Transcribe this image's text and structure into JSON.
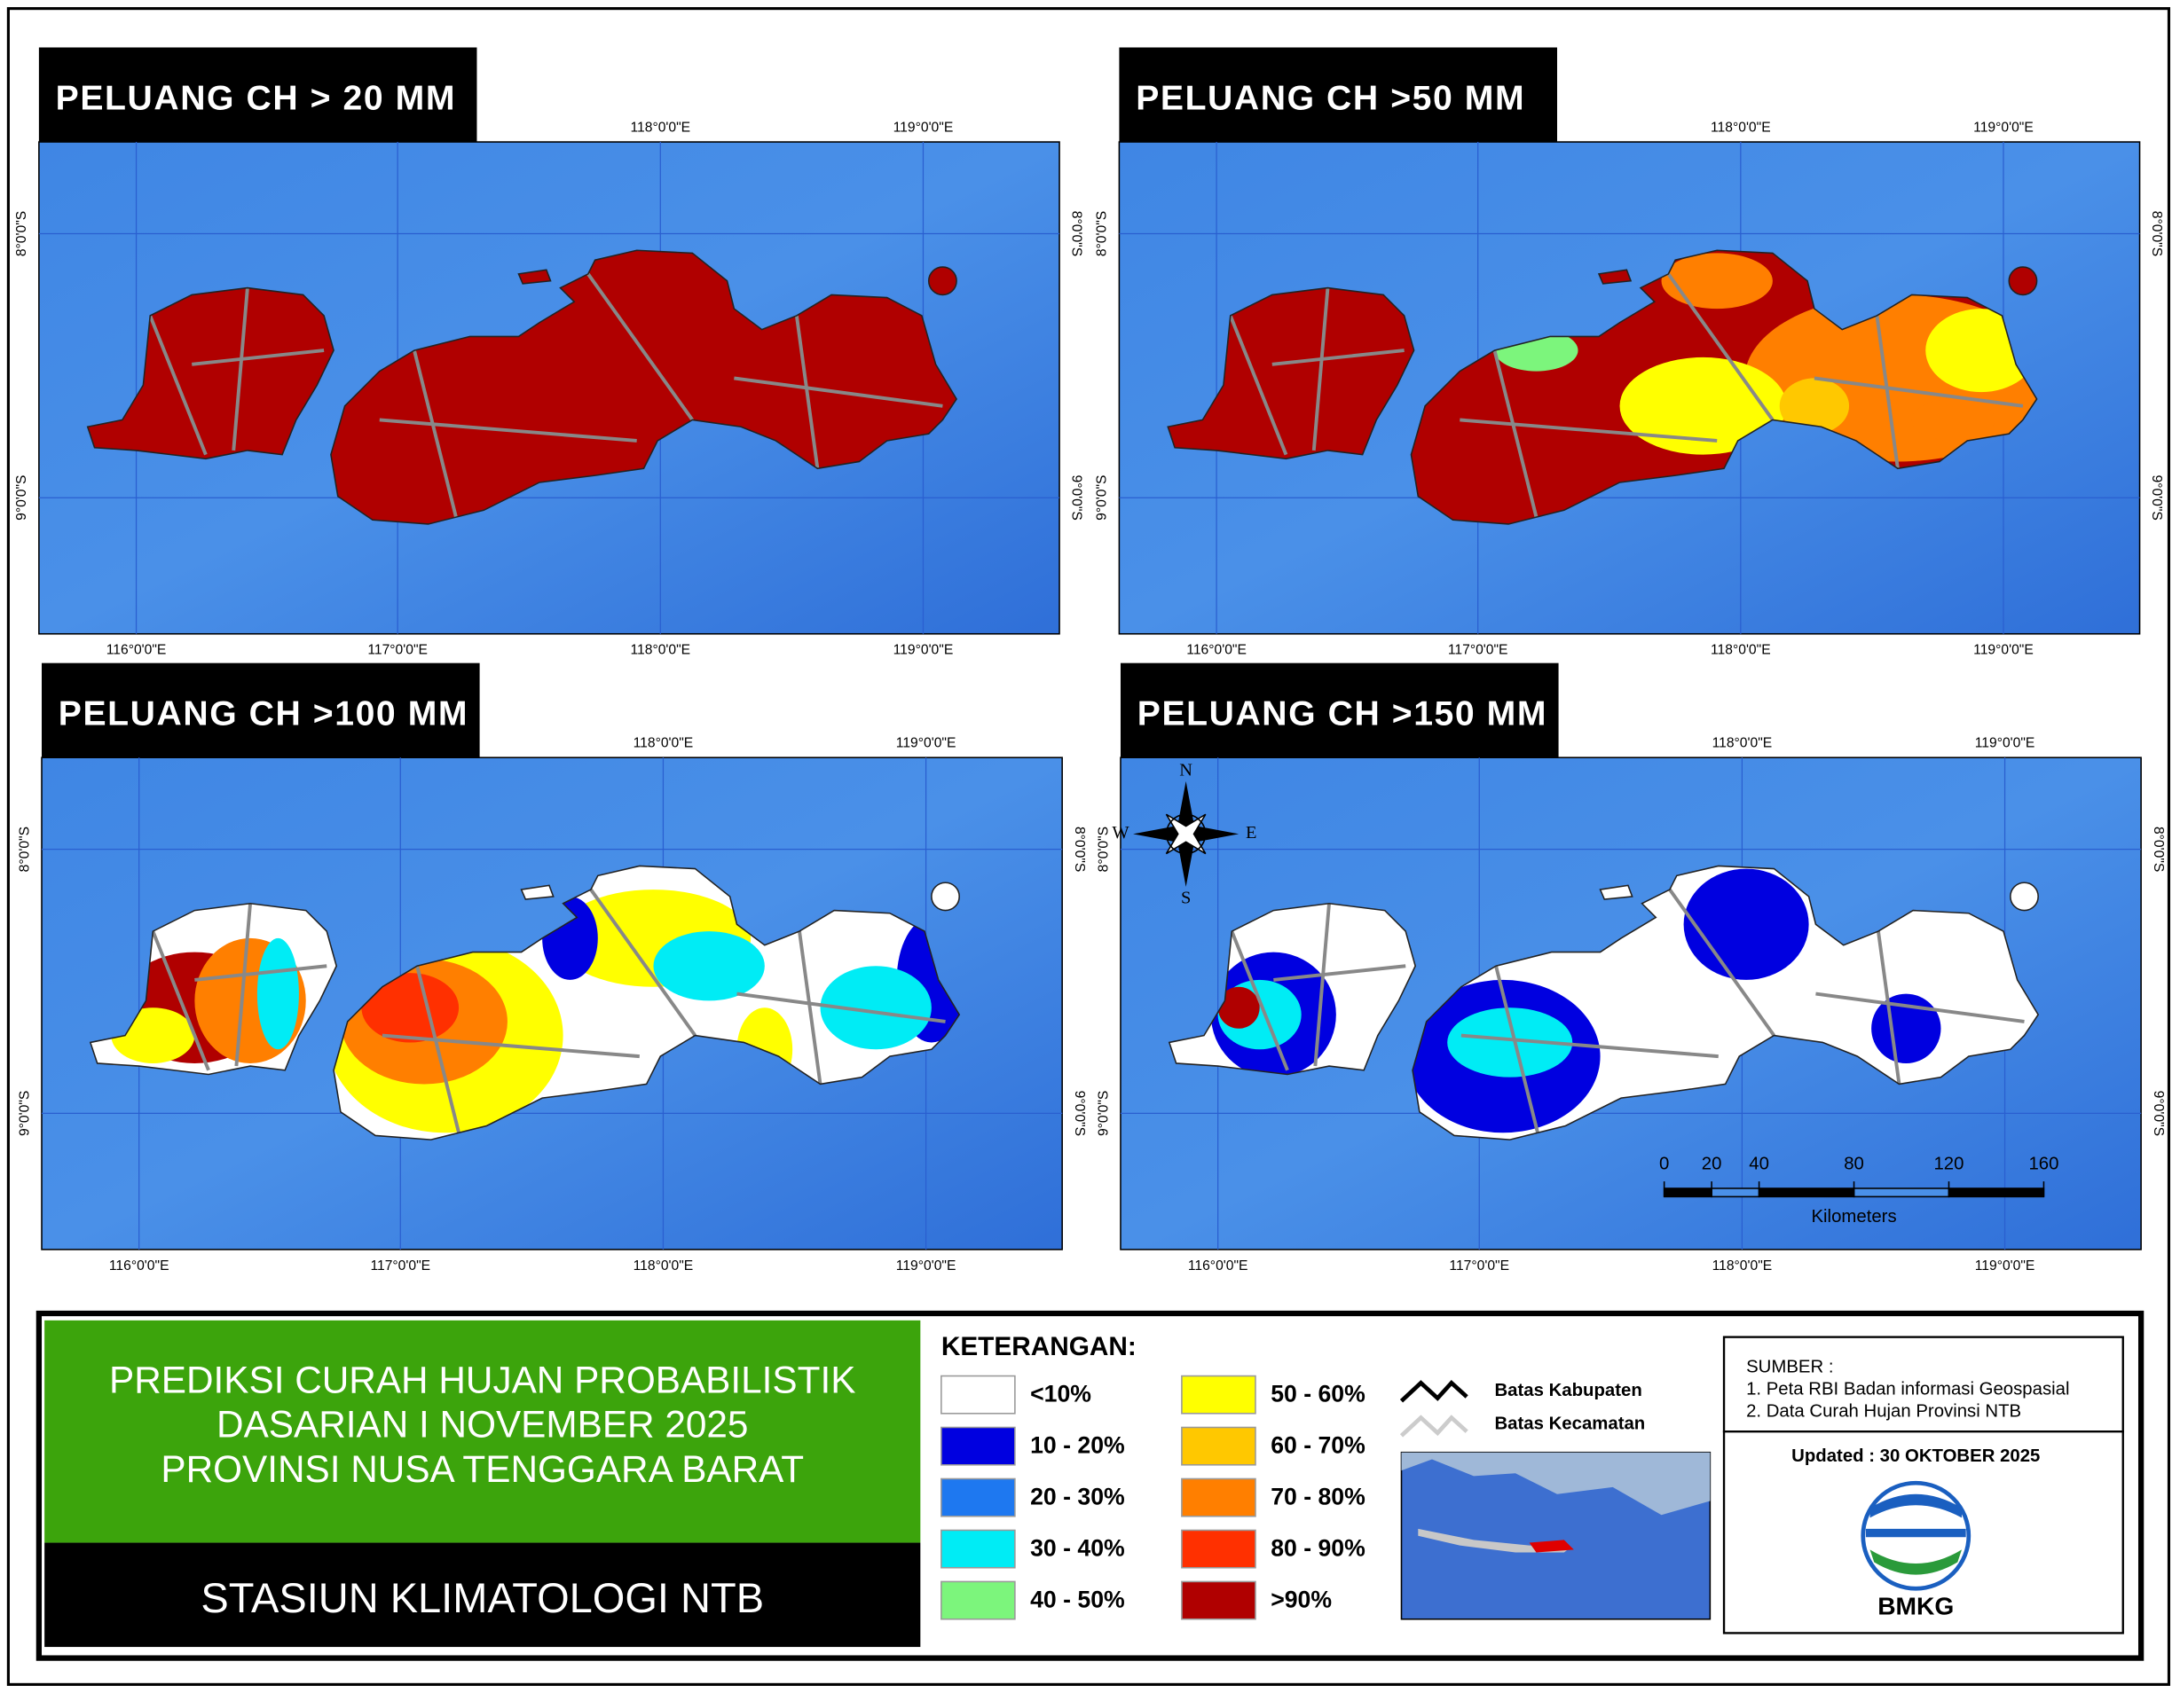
{
  "panels": [
    {
      "title": "PELUANG CH > 20 MM"
    },
    {
      "title": "PELUANG CH >50 MM"
    },
    {
      "title": "PELUANG CH >100 MM"
    },
    {
      "title": "PELUANG CH >150 MM"
    }
  ],
  "graticule": {
    "lon": [
      "116°0'0\"E",
      "117°0'0\"E",
      "118°0'0\"E",
      "119°0'0\"E"
    ],
    "lat": [
      "8°0'0\"S",
      "9°0'0\"S"
    ]
  },
  "compass": {
    "n": "N",
    "s": "S",
    "e": "E",
    "w": "W"
  },
  "scale_bar": {
    "ticks": [
      0,
      20,
      40,
      80,
      120,
      160
    ],
    "unit": "Kilometers"
  },
  "info": {
    "title_lines": [
      "PREDIKSI CURAH HUJAN PROBABILISTIK",
      "DASARIAN  I NOVEMBER 2025",
      "PROVINSI NUSA TENGGARA BARAT"
    ],
    "station": "STASIUN KLIMATOLOGI NTB"
  },
  "legend": {
    "title": "KETERANGAN:",
    "items": [
      {
        "label": "<10%",
        "color": "#ffffff"
      },
      {
        "label": "10 - 20%",
        "color": "#0000e0"
      },
      {
        "label": "20 - 30%",
        "color": "#1e78f0"
      },
      {
        "label": "30 - 40%",
        "color": "#00ecf5"
      },
      {
        "label": "40 - 50%",
        "color": "#7cf57c"
      },
      {
        "label": "50 - 60%",
        "color": "#ffff00"
      },
      {
        "label": "60 - 70%",
        "color": "#ffc800"
      },
      {
        "label": "70 - 80%",
        "color": "#ff7f00"
      },
      {
        "label": "80 - 90%",
        "color": "#ff3000"
      },
      {
        "label": ">90%",
        "color": "#b00000"
      }
    ]
  },
  "boundaries": [
    {
      "label": "Batas Kabupaten"
    },
    {
      "label": "Batas Kecamatan"
    }
  ],
  "source": {
    "title": "SUMBER :",
    "items": [
      "1. Peta RBI Badan informasi Geospasial",
      "2. Data Curah Hujan Provinsi NTB"
    ]
  },
  "updated": "Updated : 30 OKTOBER 2025",
  "logo": "BMKG"
}
